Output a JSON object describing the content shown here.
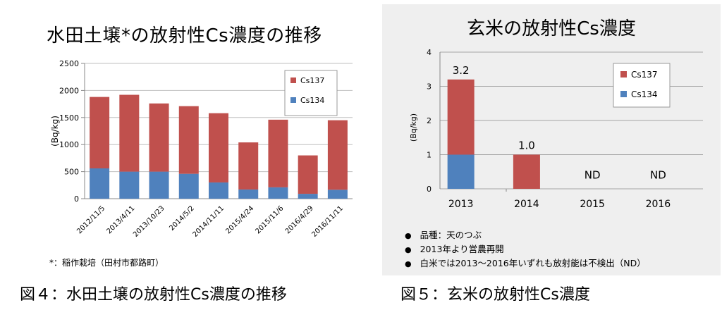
{
  "chart_data": [
    {
      "type": "bar",
      "stacked": true,
      "title": "水田土壌*の放射性Cs濃度の推移",
      "ylabel": "(Bq/kg)",
      "ylim": [
        0,
        2500
      ],
      "yticks": [
        "0",
        "500",
        "1000",
        "1500",
        "2000",
        "2500"
      ],
      "grid": true,
      "legend_position": "top-right",
      "categories": [
        "2012/11/5",
        "2013/4/11",
        "2013/10/23",
        "2014/5/2",
        "2014/11/11",
        "2015/4/24",
        "2015/11/6",
        "2016/4/29",
        "2016/11/11"
      ],
      "series": [
        {
          "name": "Cs134",
          "color": "#4f81bd",
          "values": [
            560,
            500,
            500,
            460,
            300,
            170,
            210,
            90,
            165
          ]
        },
        {
          "name": "Cs137",
          "color": "#c0504d",
          "values": [
            1320,
            1420,
            1260,
            1250,
            1280,
            870,
            1250,
            710,
            1285
          ]
        }
      ],
      "footnote": "*：稲作栽培（田村市都路町）",
      "caption": "図４：水田土壌の放射性Cs濃度の推移"
    },
    {
      "type": "bar",
      "stacked": true,
      "title": "玄米の放射性Cs濃度",
      "ylabel": "(Bq/kg)",
      "ylim": [
        0,
        4
      ],
      "yticks": [
        "0",
        "1",
        "2",
        "3",
        "4"
      ],
      "grid": true,
      "legend_position": "top-right",
      "categories": [
        "2013",
        "2014",
        "2015",
        "2016"
      ],
      "series": [
        {
          "name": "Cs134",
          "color": "#4f81bd",
          "values": [
            1.0,
            0,
            0,
            0
          ]
        },
        {
          "name": "Cs137",
          "color": "#c0504d",
          "values": [
            2.2,
            1.0,
            0,
            0
          ]
        }
      ],
      "data_labels": [
        "3.2",
        "1.0",
        "ND",
        "ND"
      ],
      "notes": [
        "品種：天のつぶ",
        "2013年より営農再開",
        "白米では2013～2016年いずれも放射能は不検出（ND）"
      ],
      "caption": "図５：玄米の放射性Cs濃度"
    }
  ]
}
